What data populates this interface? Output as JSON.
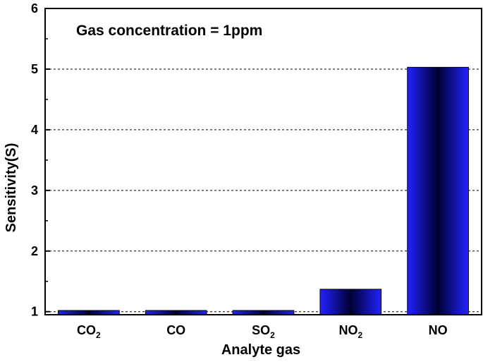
{
  "chart_data": {
    "type": "bar",
    "categories": [
      {
        "main": "CO",
        "sub": "2"
      },
      {
        "main": "CO",
        "sub": ""
      },
      {
        "main": "SO",
        "sub": "2"
      },
      {
        "main": "NO",
        "sub": "2"
      },
      {
        "main": "NO",
        "sub": ""
      }
    ],
    "values": [
      1.02,
      1.02,
      1.02,
      1.37,
      5.03
    ],
    "xlabel": "Analyte gas",
    "ylabel": "Sensitivity(S)",
    "ylim": [
      0.95,
      6
    ],
    "yticks": [
      1,
      2,
      3,
      4,
      5,
      6
    ],
    "grid": true,
    "annotation": "Gas concentration = 1ppm",
    "colors": {
      "bar_edge": "#000044",
      "bar_mid": "#000033",
      "bar_outer": "#1a1aff",
      "frame": "#000000",
      "grid": "#000000"
    }
  }
}
